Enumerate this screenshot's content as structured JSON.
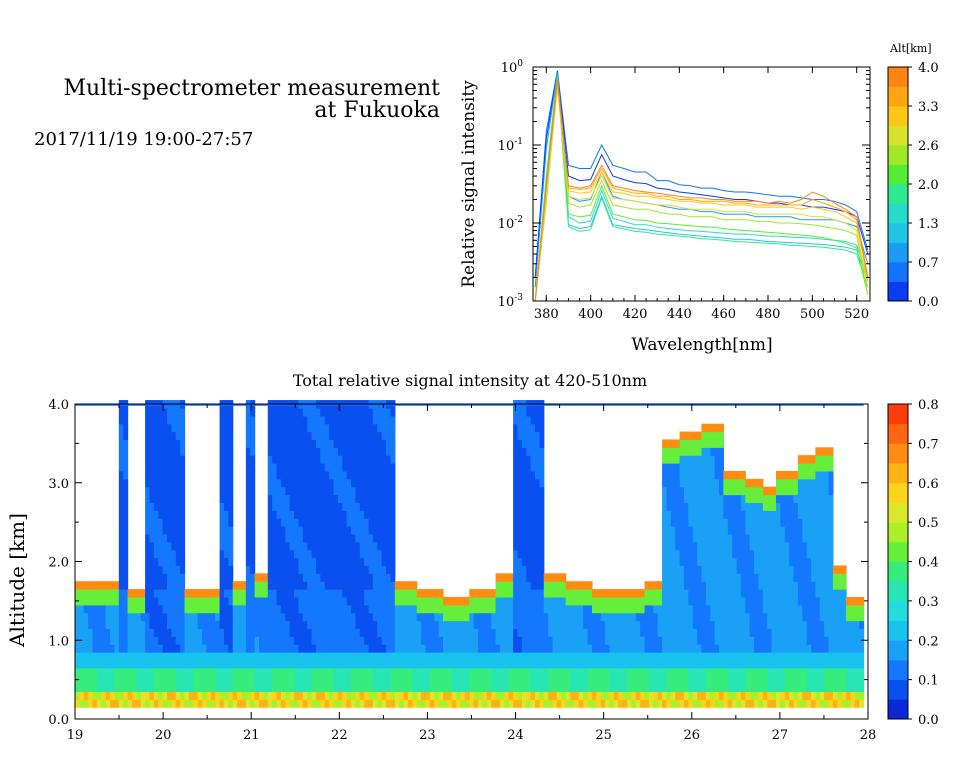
{
  "header": {
    "title_line1": "Multi-spectrometer measurement",
    "title_line2": "at Fukuoka",
    "datetime": "2017/11/19 19:00-27:57"
  },
  "chart_data": [
    {
      "type": "line",
      "ylabel": "Relative signal intensity",
      "xlabel": "Wavelength[nm]",
      "xlim": [
        374,
        526
      ],
      "ylim": [
        0.001,
        1
      ],
      "yscale": "log",
      "x_ticks": [
        380,
        400,
        420,
        440,
        460,
        480,
        500,
        520
      ],
      "y_ticks": [
        {
          "value": 0.001,
          "base": "10",
          "exp": "-3"
        },
        {
          "value": 0.01,
          "base": "10",
          "exp": "-2"
        },
        {
          "value": 0.1,
          "base": "10",
          "exp": "-1"
        },
        {
          "value": 1,
          "base": "10",
          "exp": "0"
        }
      ],
      "x": [
        375,
        380,
        385,
        390,
        395,
        400,
        405,
        410,
        415,
        420,
        425,
        430,
        435,
        440,
        445,
        450,
        455,
        460,
        465,
        470,
        475,
        480,
        485,
        490,
        495,
        500,
        505,
        510,
        515,
        520,
        525
      ],
      "colorbar": {
        "title": "Alt[km]",
        "ticks": [
          "0.0",
          "0.7",
          "1.3",
          "2.0",
          "2.6",
          "3.3",
          "4.0"
        ],
        "colors": [
          "#0a3cf0",
          "#1173ff",
          "#1a9cf0",
          "#22c4e6",
          "#26dcc8",
          "#30e890",
          "#55ec33",
          "#9fe82a",
          "#d8e22a",
          "#fcc712",
          "#ffa512",
          "#ff8412"
        ]
      },
      "series": [
        {
          "alt": 0.2,
          "color": "#1173ff",
          "values": [
            0.002,
            0.15,
            0.9,
            0.055,
            0.05,
            0.05,
            0.1,
            0.055,
            0.05,
            0.045,
            0.045,
            0.035,
            0.035,
            0.031,
            0.03,
            0.028,
            0.028,
            0.026,
            0.025,
            0.025,
            0.024,
            0.023,
            0.022,
            0.022,
            0.021,
            0.02,
            0.02,
            0.019,
            0.017,
            0.014,
            0.0045
          ]
        },
        {
          "alt": 0.4,
          "color": "#0a3cf0",
          "values": [
            0.002,
            0.12,
            0.88,
            0.04,
            0.035,
            0.036,
            0.075,
            0.04,
            0.036,
            0.033,
            0.032,
            0.028,
            0.027,
            0.025,
            0.024,
            0.023,
            0.022,
            0.021,
            0.02,
            0.02,
            0.019,
            0.018,
            0.018,
            0.017,
            0.017,
            0.016,
            0.016,
            0.015,
            0.014,
            0.012,
            0.004
          ]
        },
        {
          "alt": 0.8,
          "color": "#1a9cf0",
          "values": [
            0.0015,
            0.09,
            0.85,
            0.022,
            0.019,
            0.02,
            0.045,
            0.022,
            0.02,
            0.019,
            0.018,
            0.017,
            0.016,
            0.015,
            0.015,
            0.014,
            0.014,
            0.013,
            0.013,
            0.013,
            0.012,
            0.012,
            0.012,
            0.012,
            0.011,
            0.011,
            0.011,
            0.011,
            0.01,
            0.009,
            0.003
          ]
        },
        {
          "alt": 1.2,
          "color": "#26dcc8",
          "values": [
            0.001,
            0.04,
            0.8,
            0.012,
            0.01,
            0.0105,
            0.026,
            0.0115,
            0.0105,
            0.0095,
            0.0095,
            0.0088,
            0.0085,
            0.0082,
            0.008,
            0.0078,
            0.0076,
            0.0074,
            0.0072,
            0.0072,
            0.007,
            0.0068,
            0.0068,
            0.0066,
            0.0065,
            0.0064,
            0.0062,
            0.006,
            0.0058,
            0.0052,
            0.002
          ]
        },
        {
          "alt": 1.4,
          "color": "#22c4e6",
          "values": [
            0.001,
            0.03,
            0.78,
            0.0095,
            0.0085,
            0.009,
            0.022,
            0.0095,
            0.009,
            0.0085,
            0.0082,
            0.0078,
            0.0075,
            0.0072,
            0.007,
            0.0068,
            0.0066,
            0.0064,
            0.0062,
            0.0062,
            0.006,
            0.0058,
            0.0057,
            0.0056,
            0.0055,
            0.0054,
            0.0053,
            0.0051,
            0.0049,
            0.0045,
            0.0018
          ]
        },
        {
          "alt": 1.8,
          "color": "#30e890",
          "values": [
            0.001,
            0.025,
            0.75,
            0.009,
            0.0078,
            0.0082,
            0.021,
            0.009,
            0.0084,
            0.0078,
            0.0076,
            0.0072,
            0.007,
            0.0068,
            0.0066,
            0.0063,
            0.0062,
            0.006,
            0.0058,
            0.0057,
            0.0056,
            0.0055,
            0.0054,
            0.0052,
            0.0051,
            0.005,
            0.0049,
            0.0047,
            0.0045,
            0.004,
            0.0015
          ]
        },
        {
          "alt": 2.2,
          "color": "#55ec33",
          "values": [
            0.001,
            0.02,
            0.7,
            0.013,
            0.012,
            0.0125,
            0.03,
            0.013,
            0.012,
            0.011,
            0.0108,
            0.01,
            0.0098,
            0.0095,
            0.0092,
            0.009,
            0.0088,
            0.0085,
            0.0082,
            0.008,
            0.0078,
            0.0076,
            0.0074,
            0.0072,
            0.007,
            0.0068,
            0.0065,
            0.006,
            0.0055,
            0.0048,
            0.0012
          ]
        },
        {
          "alt": 2.6,
          "color": "#9fe82a",
          "values": [
            0.001,
            0.018,
            0.6,
            0.018,
            0.016,
            0.017,
            0.035,
            0.017,
            0.016,
            0.015,
            0.015,
            0.014,
            0.013,
            0.013,
            0.012,
            0.012,
            0.012,
            0.011,
            0.011,
            0.011,
            0.0105,
            0.0105,
            0.01,
            0.01,
            0.0098,
            0.0095,
            0.009,
            0.0085,
            0.008,
            0.007,
            0.0012
          ]
        },
        {
          "alt": 3.0,
          "color": "#d8e22a",
          "values": [
            0.001,
            0.02,
            0.55,
            0.022,
            0.02,
            0.021,
            0.04,
            0.021,
            0.02,
            0.019,
            0.018,
            0.017,
            0.017,
            0.016,
            0.015,
            0.015,
            0.015,
            0.014,
            0.014,
            0.014,
            0.013,
            0.013,
            0.013,
            0.013,
            0.013,
            0.012,
            0.012,
            0.011,
            0.01,
            0.008,
            0.0015
          ]
        },
        {
          "alt": 3.3,
          "color": "#fcc712",
          "values": [
            0.001,
            0.025,
            0.6,
            0.026,
            0.024,
            0.025,
            0.045,
            0.025,
            0.024,
            0.022,
            0.022,
            0.021,
            0.02,
            0.019,
            0.019,
            0.018,
            0.018,
            0.017,
            0.017,
            0.017,
            0.016,
            0.016,
            0.016,
            0.016,
            0.015,
            0.016,
            0.015,
            0.014,
            0.012,
            0.01,
            0.0018
          ]
        },
        {
          "alt": 3.7,
          "color": "#ffa512",
          "values": [
            0.001,
            0.03,
            0.65,
            0.028,
            0.027,
            0.028,
            0.05,
            0.028,
            0.026,
            0.024,
            0.024,
            0.022,
            0.022,
            0.02,
            0.02,
            0.019,
            0.019,
            0.019,
            0.018,
            0.018,
            0.017,
            0.017,
            0.017,
            0.017,
            0.017,
            0.02,
            0.018,
            0.016,
            0.014,
            0.011,
            0.002
          ]
        },
        {
          "alt": 4.0,
          "color": "#ff8412",
          "values": [
            0.001,
            0.03,
            0.7,
            0.03,
            0.028,
            0.03,
            0.055,
            0.03,
            0.028,
            0.026,
            0.025,
            0.024,
            0.023,
            0.022,
            0.021,
            0.021,
            0.02,
            0.02,
            0.019,
            0.019,
            0.019,
            0.018,
            0.019,
            0.018,
            0.02,
            0.025,
            0.022,
            0.018,
            0.015,
            0.012,
            0.002
          ]
        }
      ]
    },
    {
      "type": "heatmap",
      "title": "Total relative signal intensity at 420-510nm",
      "ylabel": "Altitude [km]",
      "xlim": [
        19,
        28
      ],
      "ylim": [
        0,
        4
      ],
      "x_ticks": [
        "19",
        "20",
        "21",
        "22",
        "23",
        "24",
        "25",
        "26",
        "27",
        "28"
      ],
      "y_ticks": [
        "0.0",
        "1.0",
        "2.0",
        "3.0",
        "4.0"
      ],
      "data_end_hour": 27.95,
      "colorbar": {
        "ticks": [
          "0.0",
          "0.1",
          "0.2",
          "0.3",
          "0.4",
          "0.5",
          "0.6",
          "0.7",
          "0.8"
        ],
        "colors": [
          "#0a28d8",
          "#0a50f0",
          "#1478ff",
          "#1aa0f5",
          "#18c4ee",
          "#22dce0",
          "#28e6b4",
          "#36ec7c",
          "#66ef3a",
          "#aaef2a",
          "#dce62a",
          "#fcd418",
          "#ffb214",
          "#ff8c12",
          "#ff6410",
          "#ff3c0c"
        ]
      },
      "cloud_base_km": [
        {
          "hour": 19.05,
          "base": 1.7
        },
        {
          "hour": 19.2,
          "base": 1.7
        },
        {
          "hour": 19.4,
          "base": 1.7
        },
        {
          "hour": 19.5,
          "base": null
        },
        {
          "hour": 19.6,
          "base": 1.55
        },
        {
          "hour": 19.72,
          "base": 1.6
        },
        {
          "hour": 19.82,
          "base": null
        },
        {
          "hour": 19.95,
          "base": null
        },
        {
          "hour": 20.1,
          "base": null
        },
        {
          "hour": 20.3,
          "base": 1.6
        },
        {
          "hour": 20.55,
          "base": 1.6
        },
        {
          "hour": 20.68,
          "base": null
        },
        {
          "hour": 20.85,
          "base": 1.7
        },
        {
          "hour": 20.95,
          "base": null
        },
        {
          "hour": 21.1,
          "base": 1.8
        },
        {
          "hour": 21.2,
          "base": null
        },
        {
          "hour": 21.5,
          "base": null
        },
        {
          "hour": 22.0,
          "base": null
        },
        {
          "hour": 22.5,
          "base": null
        },
        {
          "hour": 22.75,
          "base": 1.65
        },
        {
          "hour": 23.0,
          "base": 1.6
        },
        {
          "hour": 23.3,
          "base": 1.5
        },
        {
          "hour": 23.6,
          "base": 1.6
        },
        {
          "hour": 23.85,
          "base": 1.8
        },
        {
          "hour": 24.0,
          "base": null
        },
        {
          "hour": 24.2,
          "base": null
        },
        {
          "hour": 24.4,
          "base": 1.8
        },
        {
          "hour": 24.7,
          "base": 1.65
        },
        {
          "hour": 25.0,
          "base": 1.55
        },
        {
          "hour": 25.3,
          "base": 1.6
        },
        {
          "hour": 25.6,
          "base": 1.7
        },
        {
          "hour": 25.7,
          "base": 3.5
        },
        {
          "hour": 26.0,
          "base": 3.6
        },
        {
          "hour": 26.2,
          "base": 3.7
        },
        {
          "hour": 26.45,
          "base": 3.1
        },
        {
          "hour": 26.7,
          "base": 3.0
        },
        {
          "hour": 26.85,
          "base": 2.9
        },
        {
          "hour": 27.05,
          "base": 3.1
        },
        {
          "hour": 27.3,
          "base": 3.3
        },
        {
          "hour": 27.5,
          "base": 3.35
        },
        {
          "hour": 27.65,
          "base": 1.9
        },
        {
          "hour": 27.8,
          "base": 1.5
        },
        {
          "hour": 27.95,
          "base": 1.45
        }
      ]
    }
  ]
}
